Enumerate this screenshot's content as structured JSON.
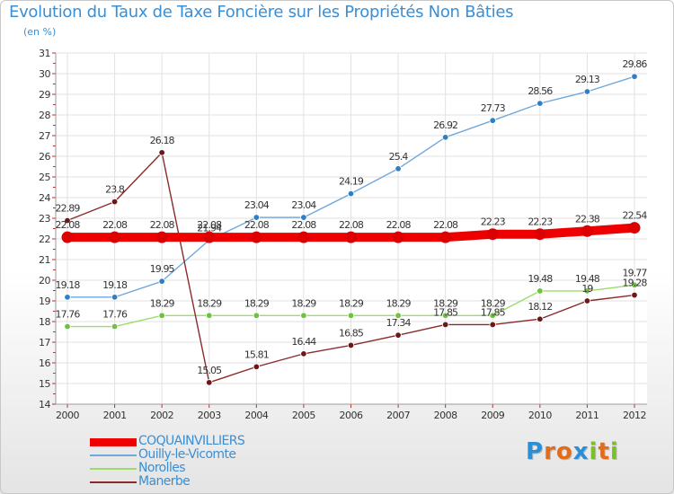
{
  "header": {
    "title": "Evolution du Taux de Taxe Foncière sur les Propriétés Non Bâties",
    "unit": "(en %)"
  },
  "logo": {
    "letters": [
      "P",
      "r",
      "o",
      "x",
      "i",
      "t",
      "i"
    ],
    "colors": [
      "#2b8fd8",
      "#e36c1b",
      "#e36c1b",
      "#2b8fd8",
      "#7cbf2b",
      "#e36c1b",
      "#7cbf2b"
    ]
  },
  "chart_data": {
    "type": "line",
    "categories": [
      "2000",
      "2001",
      "2002",
      "2003",
      "2004",
      "2005",
      "2006",
      "2007",
      "2008",
      "2009",
      "2010",
      "2011",
      "2012"
    ],
    "y_ticks": [
      "14",
      "15",
      "16",
      "17",
      "18",
      "19",
      "20",
      "21",
      "22",
      "23",
      "24",
      "25",
      "26",
      "27",
      "28",
      "29",
      "30",
      "31"
    ],
    "ylim": [
      14,
      31
    ],
    "grid": true,
    "legend_position": "bottom-left",
    "series": [
      {
        "name": "COQUAINVILLIERS",
        "color": "#ee0000",
        "marker": "#dd0000",
        "emphasis": true,
        "values": [
          22.08,
          22.08,
          22.08,
          22.08,
          22.08,
          22.08,
          22.08,
          22.08,
          22.08,
          22.23,
          22.23,
          22.38,
          22.54
        ],
        "labels": [
          "22.08",
          "22.08",
          "22.08",
          "22.08",
          "22.08",
          "22.08",
          "22.08",
          "22.08",
          "22.08",
          "22.23",
          "22.23",
          "22.38",
          "22.54"
        ]
      },
      {
        "name": "Ouilly-le-Vicomte",
        "color": "#6fa8dc",
        "marker": "#2f7fc6",
        "values": [
          19.18,
          19.18,
          19.95,
          21.94,
          23.04,
          23.04,
          24.19,
          25.4,
          26.92,
          27.73,
          28.56,
          29.13,
          29.86
        ],
        "labels": [
          "19.18",
          "19.18",
          "19.95",
          "21.94",
          "23.04",
          "23.04",
          "24.19",
          "25.4",
          "26.92",
          "27.73",
          "28.56",
          "29.13",
          "29.86"
        ]
      },
      {
        "name": "Norolles",
        "color": "#9bdc6a",
        "marker": "#6cc43a",
        "values": [
          17.76,
          17.76,
          18.29,
          18.29,
          18.29,
          18.29,
          18.29,
          18.29,
          18.29,
          18.29,
          19.48,
          19.48,
          19.77
        ],
        "labels": [
          "17.76",
          "17.76",
          "18.29",
          "18.29",
          "18.29",
          "18.29",
          "18.29",
          "18.29",
          "18.29",
          "18.29",
          "19.48",
          "19.48",
          "19.77"
        ]
      },
      {
        "name": "Manerbe",
        "color": "#8b2a2a",
        "marker": "#6a1818",
        "values": [
          22.89,
          23.8,
          26.18,
          15.05,
          15.81,
          16.44,
          16.85,
          17.34,
          17.85,
          17.85,
          18.12,
          19,
          19.28
        ],
        "labels": [
          "22.89",
          "23.8",
          "26.18",
          "15.05",
          "15.81",
          "16.44",
          "16.85",
          "17.34",
          "17.85",
          "17.85",
          "18.12",
          "19",
          "19.28"
        ]
      }
    ]
  }
}
